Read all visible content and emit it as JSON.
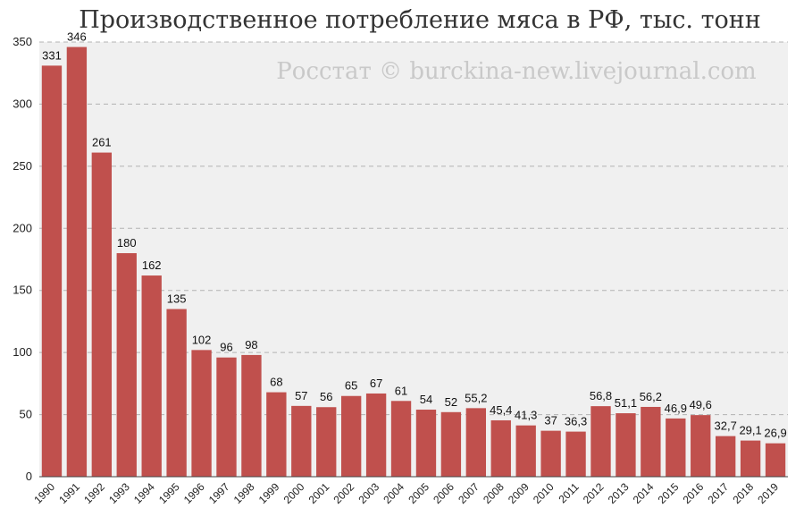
{
  "chart_data": {
    "type": "bar",
    "title": "Производственное потребление мяса в РФ, тыс. тонн",
    "watermark": "Росстат © burckina-new.livejournal.com",
    "xlabel": "",
    "ylabel": "",
    "ylim": [
      0,
      350
    ],
    "yticks": [
      0,
      50,
      100,
      150,
      200,
      250,
      300,
      350
    ],
    "grid": true,
    "legend": "none",
    "bar_color": "#c0504d",
    "categories": [
      "1990",
      "1991",
      "1992",
      "1993",
      "1994",
      "1995",
      "1996",
      "1997",
      "1998",
      "1999",
      "2000",
      "2001",
      "2002",
      "2003",
      "2004",
      "2005",
      "2006",
      "2007",
      "2008",
      "2009",
      "2010",
      "2011",
      "2012",
      "2013",
      "2014",
      "2015",
      "2016",
      "2017",
      "2018",
      "2019"
    ],
    "values": [
      331,
      346,
      261,
      180,
      162,
      135,
      102,
      96,
      98,
      68,
      57,
      56,
      65,
      67,
      61,
      54,
      52,
      55.2,
      45.4,
      41.3,
      37,
      36.3,
      56.8,
      51.1,
      56.2,
      46.9,
      49.6,
      32.7,
      29.1,
      26.9
    ],
    "value_labels": [
      "331",
      "346",
      "261",
      "180",
      "162",
      "135",
      "102",
      "96",
      "98",
      "68",
      "57",
      "56",
      "65",
      "67",
      "61",
      "54",
      "52",
      "55,2",
      "45,4",
      "41,3",
      "37",
      "36,3",
      "56,8",
      "51,1",
      "56,2",
      "46,9",
      "49,6",
      "32,7",
      "29,1",
      "26,9"
    ]
  }
}
